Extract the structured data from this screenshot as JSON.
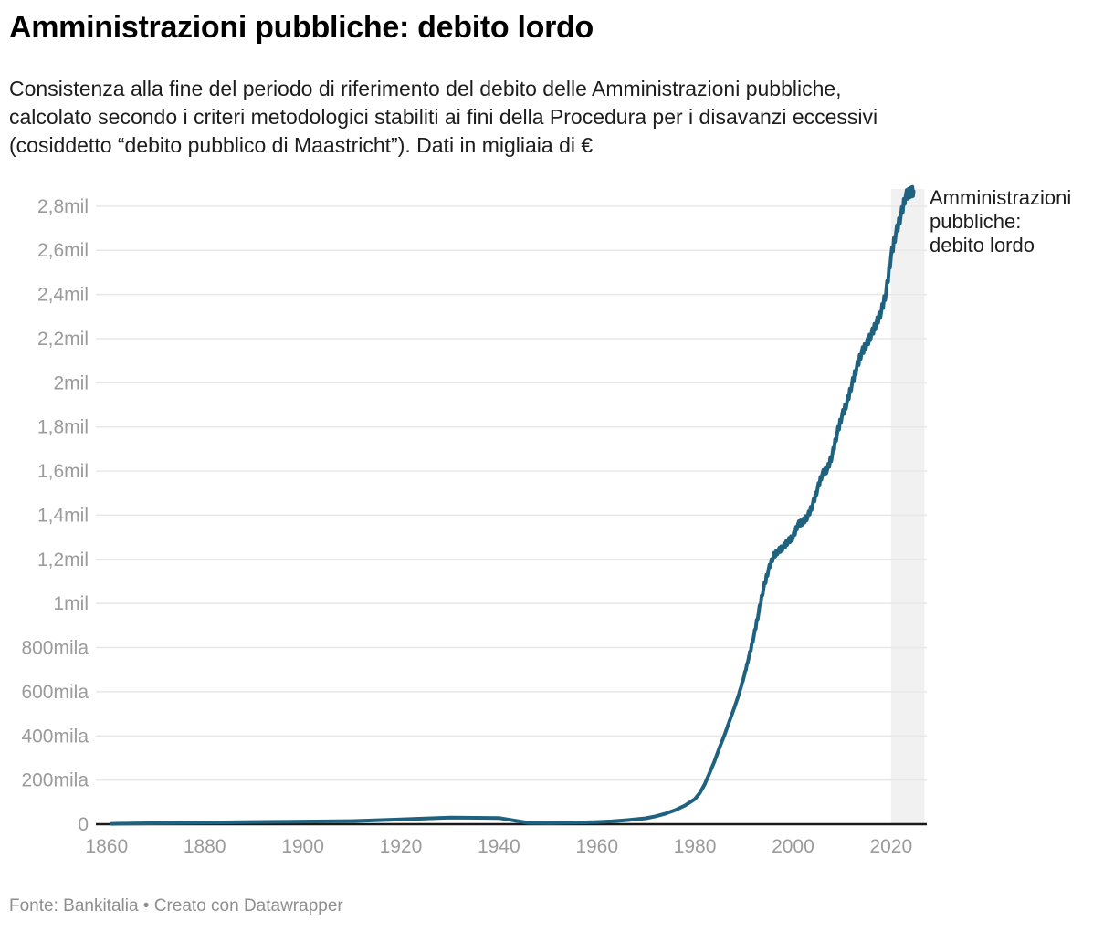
{
  "header": {
    "title": "Amministrazioni pubbliche: debito lordo",
    "subtitle": "Consistenza alla fine del periodo di riferimento del debito delle Amministrazioni pubbliche,\ncalcolato secondo i criteri metodologici stabiliti ai fini della Procedura per i disavanzi eccessivi\n(cosiddetto “debito pubblico di Maastricht”). Dati in migliaia di €"
  },
  "annotation": {
    "series_label": "Amministrazioni\npubbliche:\ndebito lordo"
  },
  "footer": {
    "text": "Fonte: Bankitalia • Creato con Datawrapper"
  },
  "colors": {
    "line": "#1e627f",
    "grid": "#e8e8e8",
    "zero_axis": "#1a1a1a",
    "highlight_band": "#f1f1f1",
    "tick_text": "#9b9b9b"
  },
  "chart_data": {
    "type": "line",
    "title": "Amministrazioni pubbliche: debito lordo",
    "unit": "migliaia di €",
    "xlabel": "",
    "ylabel": "",
    "grid": true,
    "legend_position": "right",
    "xlim": [
      1857.8,
      2027.3
    ],
    "ylim": [
      0,
      2878000
    ],
    "x_ticks": [
      1860,
      1880,
      1900,
      1920,
      1940,
      1960,
      1980,
      2000,
      2020
    ],
    "y_ticks": [
      {
        "value": 0,
        "label": "0"
      },
      {
        "value": 200000,
        "label": "200mila"
      },
      {
        "value": 400000,
        "label": "400mila"
      },
      {
        "value": 600000,
        "label": "600mila"
      },
      {
        "value": 800000,
        "label": "800mila"
      },
      {
        "value": 1000000,
        "label": "1mil"
      },
      {
        "value": 1200000,
        "label": "1,2mil"
      },
      {
        "value": 1400000,
        "label": "1,4mil"
      },
      {
        "value": 1600000,
        "label": "1,6mil"
      },
      {
        "value": 1800000,
        "label": "1,8mil"
      },
      {
        "value": 2000000,
        "label": "2mil"
      },
      {
        "value": 2200000,
        "label": "2,2mil"
      },
      {
        "value": 2400000,
        "label": "2,4mil"
      },
      {
        "value": 2600000,
        "label": "2,6mil"
      },
      {
        "value": 2800000,
        "label": "2,8mil"
      }
    ],
    "highlight_band": {
      "from_year": 2020,
      "to_year": 2026.8
    },
    "series": [
      {
        "name": "Amministrazioni pubbliche: debito lordo",
        "color": "#1e627f",
        "points": [
          [
            1861,
            1500
          ],
          [
            1870,
            4500
          ],
          [
            1880,
            7500
          ],
          [
            1890,
            10000
          ],
          [
            1900,
            12000
          ],
          [
            1910,
            14000
          ],
          [
            1920,
            22000
          ],
          [
            1930,
            30000
          ],
          [
            1940,
            28000
          ],
          [
            1946,
            6000
          ],
          [
            1950,
            5000
          ],
          [
            1955,
            7000
          ],
          [
            1960,
            10000
          ],
          [
            1963,
            13000
          ],
          [
            1966,
            18000
          ],
          [
            1970,
            27000
          ],
          [
            1972,
            36000
          ],
          [
            1974,
            48000
          ],
          [
            1976,
            64000
          ],
          [
            1978,
            85000
          ],
          [
            1980,
            114000
          ],
          [
            1981,
            142000
          ],
          [
            1982,
            181000
          ],
          [
            1983,
            233000
          ],
          [
            1984,
            285000
          ],
          [
            1985,
            346000
          ],
          [
            1986,
            402000
          ],
          [
            1987,
            464000
          ],
          [
            1988,
            525000
          ],
          [
            1989,
            591000
          ],
          [
            1990,
            668000
          ],
          [
            1991,
            756000
          ],
          [
            1992,
            850000
          ],
          [
            1993,
            960000
          ],
          [
            1994,
            1069000
          ],
          [
            1995,
            1152000
          ],
          [
            1996,
            1214000
          ],
          [
            1997,
            1238000
          ],
          [
            1998,
            1254000
          ],
          [
            1999,
            1282000
          ],
          [
            2000,
            1300000
          ],
          [
            2001,
            1358000
          ],
          [
            2002,
            1369000
          ],
          [
            2003,
            1394000
          ],
          [
            2004,
            1446000
          ],
          [
            2005,
            1519000
          ],
          [
            2006,
            1588000
          ],
          [
            2007,
            1607000
          ],
          [
            2008,
            1671000
          ],
          [
            2009,
            1770000
          ],
          [
            2010,
            1851000
          ],
          [
            2011,
            1908000
          ],
          [
            2012,
            1990000
          ],
          [
            2013,
            2070000
          ],
          [
            2014,
            2137000
          ],
          [
            2015,
            2173000
          ],
          [
            2016,
            2220000
          ],
          [
            2017,
            2269000
          ],
          [
            2018,
            2321000
          ],
          [
            2019,
            2410000
          ],
          [
            2020,
            2573000
          ],
          [
            2021,
            2678000
          ],
          [
            2022,
            2757000
          ],
          [
            2023,
            2849000
          ],
          [
            2024,
            2863000
          ],
          [
            2024.6,
            2868000
          ]
        ]
      }
    ]
  }
}
